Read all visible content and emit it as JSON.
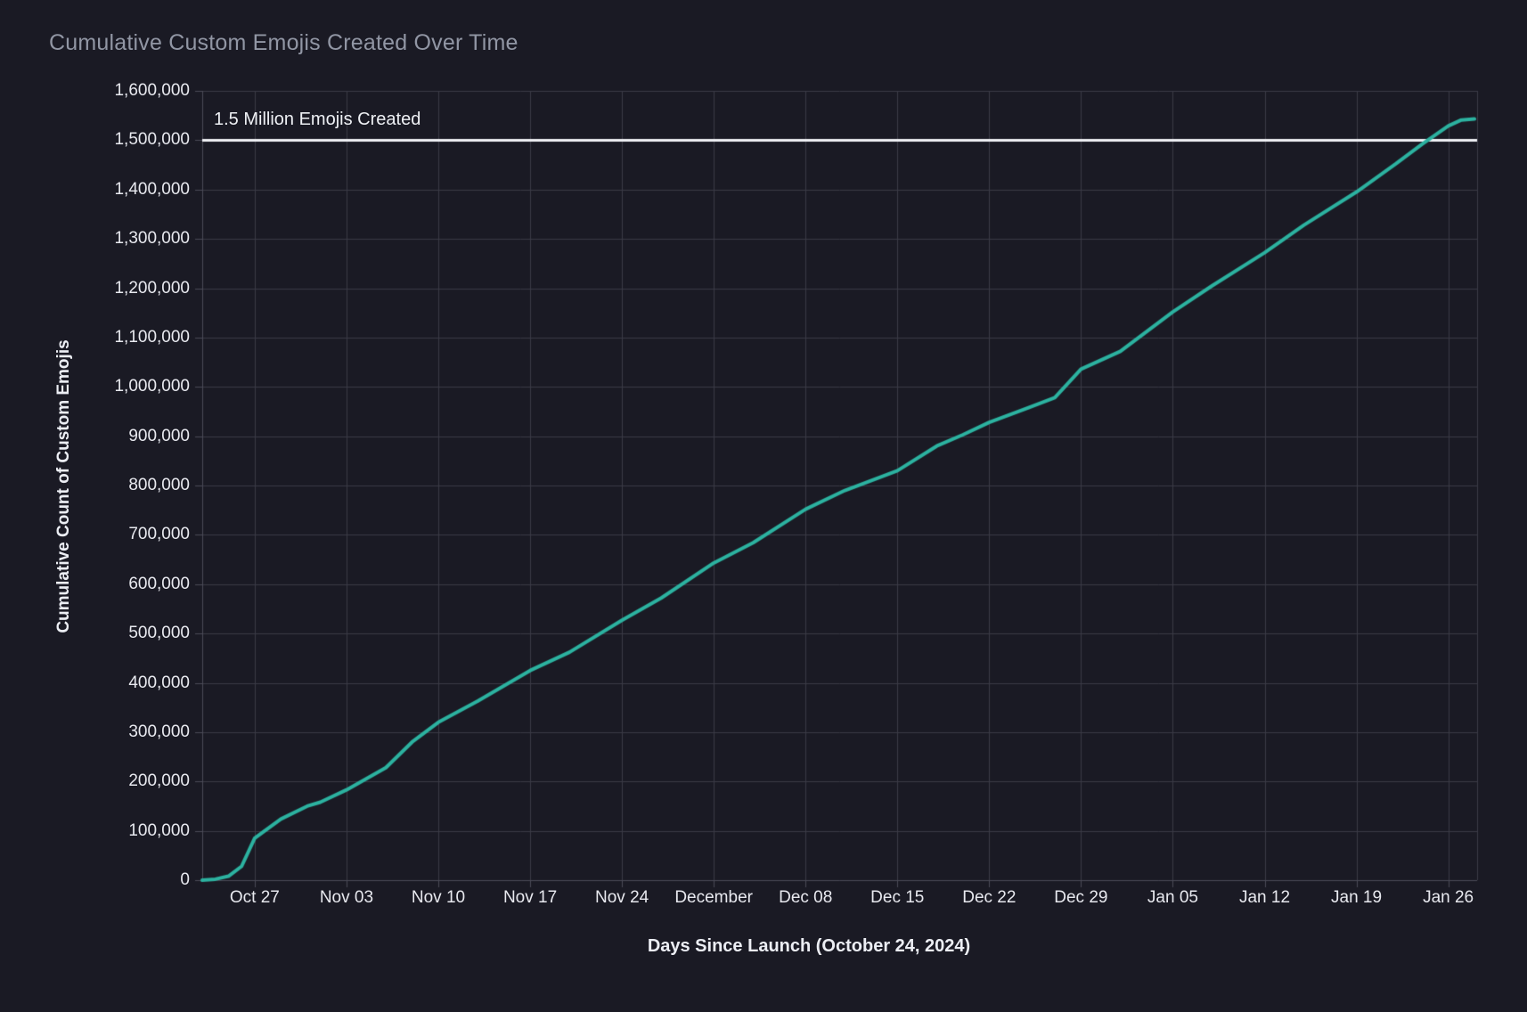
{
  "chart_data": {
    "type": "line",
    "title": "Cumulative Custom Emojis Created Over Time",
    "xlabel": "Days Since Launch (October 24, 2024)",
    "ylabel": "Cumulative Count of Custom Emojis",
    "legend": "none",
    "grid": true,
    "ylim": [
      0,
      1600000
    ],
    "x_range_days": [
      -1,
      96.2
    ],
    "yticks": {
      "values": [
        0,
        100000,
        200000,
        300000,
        400000,
        500000,
        600000,
        700000,
        800000,
        900000,
        1000000,
        1100000,
        1200000,
        1300000,
        1400000,
        1500000,
        1600000
      ],
      "labels": [
        "0",
        "100,000",
        "200,000",
        "300,000",
        "400,000",
        "500,000",
        "600,000",
        "700,000",
        "800,000",
        "900,000",
        "1,000,000",
        "1,100,000",
        "1,200,000",
        "1,300,000",
        "1,400,000",
        "1,500,000",
        "1,600,000"
      ]
    },
    "xticks": [
      {
        "label": "Oct 27",
        "day": 3
      },
      {
        "label": "Nov 03",
        "day": 10
      },
      {
        "label": "Nov 10",
        "day": 17
      },
      {
        "label": "Nov 17",
        "day": 24
      },
      {
        "label": "Nov 24",
        "day": 31
      },
      {
        "label": "December",
        "day": 38
      },
      {
        "label": "Dec 08",
        "day": 45
      },
      {
        "label": "Dec 15",
        "day": 52
      },
      {
        "label": "Dec 22",
        "day": 59
      },
      {
        "label": "Dec 29",
        "day": 66
      },
      {
        "label": "Jan 05",
        "day": 73
      },
      {
        "label": "Jan 12",
        "day": 80
      },
      {
        "label": "Jan 19",
        "day": 87
      },
      {
        "label": "Jan 26",
        "day": 94
      }
    ],
    "reference_line": {
      "value": 1500000,
      "label": "1.5 Million Emojis Created",
      "color": "#f0f1f5"
    },
    "series": [
      {
        "name": "cumulative-custom-emojis",
        "color": "#2cb2a0",
        "points": [
          {
            "day": -1,
            "date": "Oct 23",
            "value": 0
          },
          {
            "day": 0,
            "date": "Oct 24",
            "value": 2000
          },
          {
            "day": 1,
            "date": "Oct 25",
            "value": 8000
          },
          {
            "day": 2,
            "date": "Oct 26",
            "value": 28000
          },
          {
            "day": 3,
            "date": "Oct 27",
            "value": 85000
          },
          {
            "day": 5,
            "date": "Oct 29",
            "value": 124000
          },
          {
            "day": 7,
            "date": "Oct 31",
            "value": 150000
          },
          {
            "day": 8,
            "date": "Nov 01",
            "value": 158000
          },
          {
            "day": 10,
            "date": "Nov 03",
            "value": 183000
          },
          {
            "day": 13,
            "date": "Nov 06",
            "value": 228000
          },
          {
            "day": 15,
            "date": "Nov 08",
            "value": 280000
          },
          {
            "day": 17,
            "date": "Nov 10",
            "value": 320000
          },
          {
            "day": 20,
            "date": "Nov 13",
            "value": 363000
          },
          {
            "day": 24,
            "date": "Nov 17",
            "value": 425000
          },
          {
            "day": 27,
            "date": "Nov 20",
            "value": 462000
          },
          {
            "day": 31,
            "date": "Nov 24",
            "value": 527000
          },
          {
            "day": 34,
            "date": "Nov 27",
            "value": 572000
          },
          {
            "day": 38,
            "date": "Dec 01",
            "value": 643000
          },
          {
            "day": 41,
            "date": "Dec 04",
            "value": 684000
          },
          {
            "day": 45,
            "date": "Dec 08",
            "value": 752000
          },
          {
            "day": 48,
            "date": "Dec 11",
            "value": 790000
          },
          {
            "day": 52,
            "date": "Dec 15",
            "value": 830000
          },
          {
            "day": 55,
            "date": "Dec 18",
            "value": 880000
          },
          {
            "day": 57,
            "date": "Dec 20",
            "value": 903000
          },
          {
            "day": 59,
            "date": "Dec 22",
            "value": 928000
          },
          {
            "day": 62,
            "date": "Dec 25",
            "value": 958000
          },
          {
            "day": 64,
            "date": "Dec 27",
            "value": 978000
          },
          {
            "day": 66,
            "date": "Dec 29",
            "value": 1036000
          },
          {
            "day": 69,
            "date": "Jan 01",
            "value": 1072000
          },
          {
            "day": 73,
            "date": "Jan 05",
            "value": 1152000
          },
          {
            "day": 76,
            "date": "Jan 08",
            "value": 1205000
          },
          {
            "day": 80,
            "date": "Jan 12",
            "value": 1272000
          },
          {
            "day": 83,
            "date": "Jan 15",
            "value": 1328000
          },
          {
            "day": 87,
            "date": "Jan 19",
            "value": 1395000
          },
          {
            "day": 90,
            "date": "Jan 22",
            "value": 1452000
          },
          {
            "day": 92,
            "date": "Jan 24",
            "value": 1492000
          },
          {
            "day": 94,
            "date": "Jan 26",
            "value": 1529000
          },
          {
            "day": 95,
            "date": "Jan 27",
            "value": 1541000
          },
          {
            "day": 96,
            "date": "Jan 28",
            "value": 1543000
          }
        ]
      }
    ],
    "style": {
      "background": "#1a1a24",
      "grid_color": "#3a3a46",
      "axis_color": "#4a4a57",
      "tick_label_color": "#e8e9ef",
      "axis_title_color": "#eceef4",
      "title_color": "#9196a4",
      "annotation_color": "#eef0f4",
      "line_width": 4,
      "reference_line_width": 3
    }
  }
}
